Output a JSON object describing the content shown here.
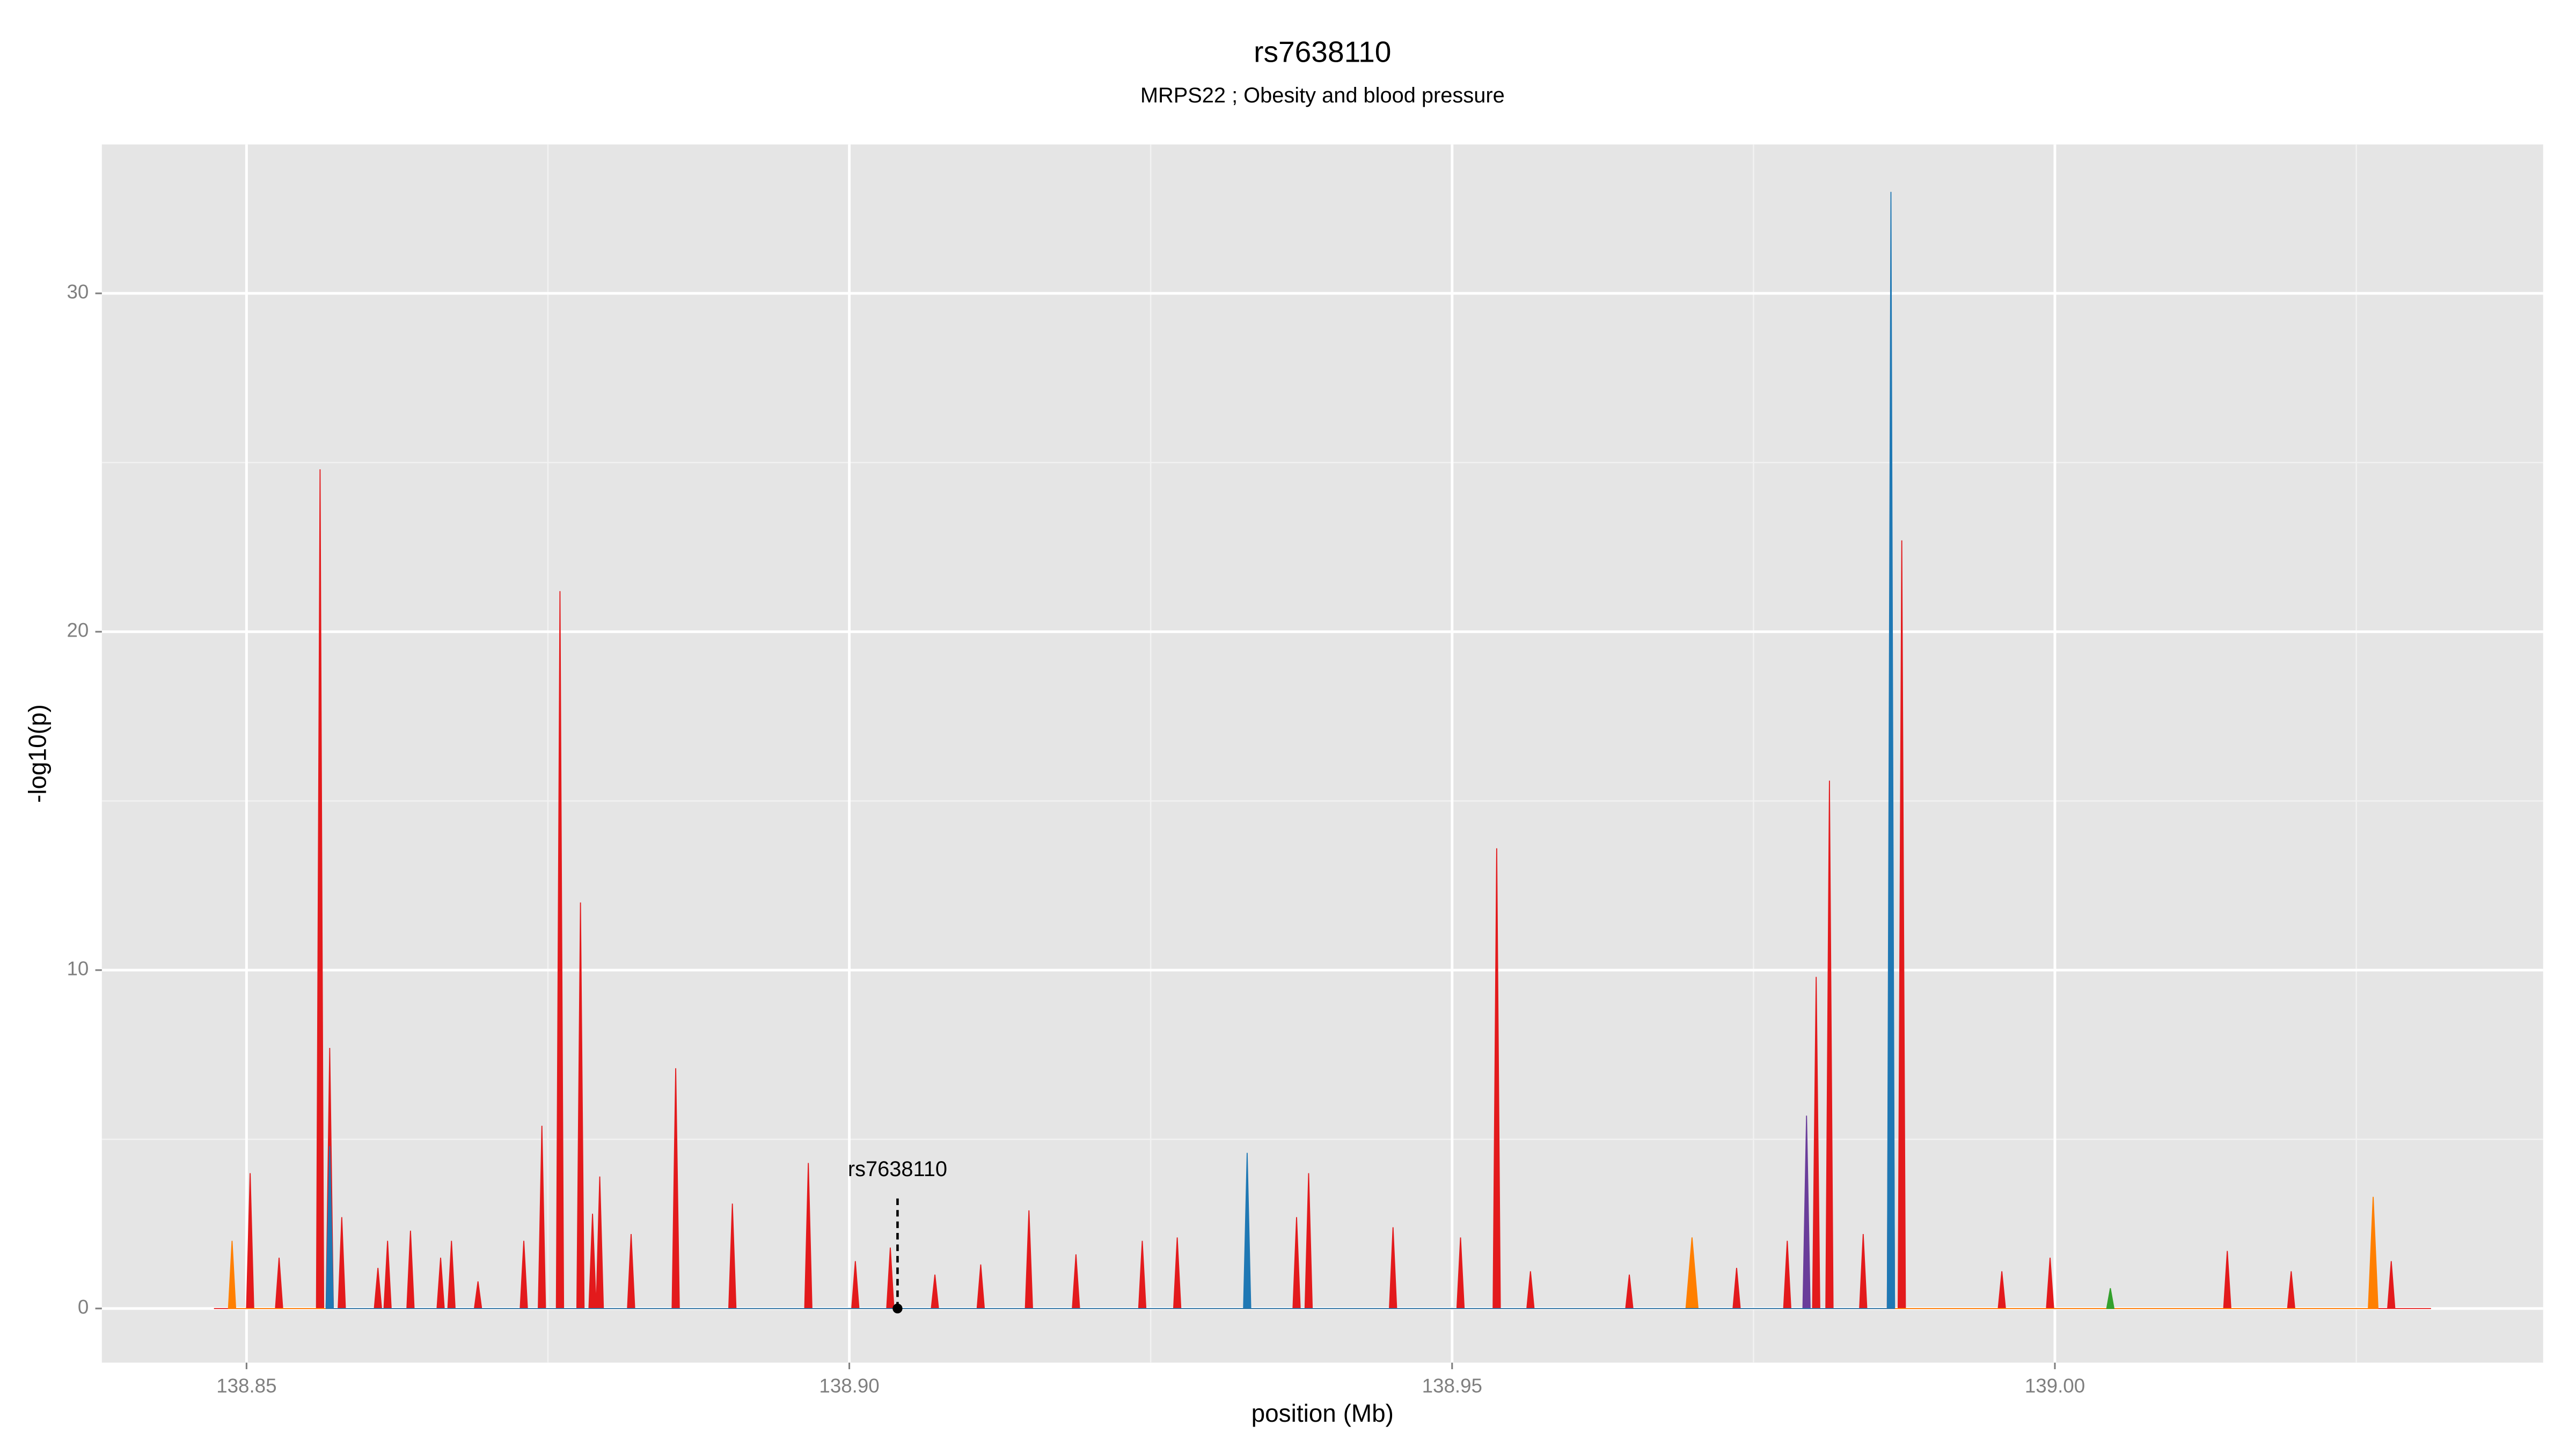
{
  "chart_data": {
    "type": "area",
    "title": "rs7638110",
    "subtitle": "MRPS22 ; Obesity and blood pressure",
    "xlabel": "position (Mb)",
    "ylabel": "-log10(p)",
    "xlim": [
      138.838,
      139.0405
    ],
    "ylim": [
      -1.6,
      34.4
    ],
    "xticks": [
      138.85,
      {
        "value": 138.9,
        "label": "138.90"
      },
      138.95,
      {
        "value": 139.0,
        "label": "139.00"
      }
    ],
    "yticks": [
      0,
      10,
      20,
      30
    ],
    "xminor": [
      138.875,
      138.925,
      138.975,
      139.025
    ],
    "yminor": [
      5,
      15,
      25
    ],
    "grid": true,
    "annotation": {
      "label": "rs7638110",
      "x": 138.904,
      "y": 0
    },
    "series": [
      {
        "color": "#e31a1c",
        "x": [
          138.8473,
          138.85,
          138.8503,
          138.8506,
          138.8524,
          138.8527,
          138.853,
          138.8558,
          138.8561,
          138.8564,
          138.8566,
          138.8569,
          138.8572,
          138.8576,
          138.8579,
          138.8582,
          138.8606,
          138.8609,
          138.8612,
          138.8614,
          138.8617,
          138.862,
          138.8633,
          138.8636,
          138.8639,
          138.8658,
          138.8661,
          138.8664,
          138.8667,
          138.867,
          138.8673,
          138.8689,
          138.8692,
          138.8695,
          138.8727,
          138.873,
          138.8733,
          138.8742,
          138.8745,
          138.8748,
          138.8757,
          138.876,
          138.8763,
          138.8774,
          138.8777,
          138.878,
          138.8784,
          138.8787,
          138.879,
          138.879,
          138.8793,
          138.8796,
          138.8816,
          138.8819,
          138.8822,
          138.8853,
          138.8856,
          138.8859,
          138.89,
          138.8903,
          138.8906,
          138.8963,
          138.8966,
          138.8969,
          138.9002,
          138.9005,
          138.9008,
          138.9031,
          138.9034,
          138.9037,
          138.9068,
          138.9071,
          138.9074,
          138.9106,
          138.9109,
          138.9112,
          138.9146,
          138.9149,
          138.9152,
          138.9185,
          138.9188,
          138.9191,
          138.924,
          138.9243,
          138.9246,
          138.9269,
          138.9272,
          138.9275,
          138.9368,
          138.9371,
          138.9374,
          138.9378,
          138.9381,
          138.9384,
          138.9448,
          138.9451,
          138.9454,
          138.9504,
          138.9507,
          138.951,
          138.9534,
          138.9537,
          138.954,
          138.9562,
          138.9565,
          138.9568,
          138.9644,
          138.9647,
          138.965,
          138.9733,
          138.9736,
          138.9739,
          138.9775,
          138.9778,
          138.9781,
          138.9799,
          138.9802,
          138.9805,
          138.981,
          138.9813,
          138.9816,
          138.9838,
          138.9841,
          138.9844,
          138.9861,
          138.9864,
          138.9867,
          138.987,
          138.9873,
          138.9876,
          138.9953,
          138.9956,
          138.9959,
          138.9993,
          138.9996,
          138.9999,
          139.014,
          139.0143,
          139.0146,
          139.0193,
          139.0196,
          139.0199,
          139.0276,
          139.0279,
          139.0282,
          139.0312
        ],
        "values": [
          0,
          0,
          4,
          0,
          0,
          1.5,
          0,
          0,
          24.8,
          0,
          0,
          7.7,
          0,
          0,
          2.7,
          0,
          0,
          1.2,
          0,
          0,
          2,
          0,
          0,
          2.3,
          0,
          0,
          1.5,
          0,
          0,
          2,
          0,
          0,
          0.8,
          0,
          0,
          2,
          0,
          0,
          5.4,
          0,
          0,
          21.2,
          0,
          0,
          12,
          0,
          0,
          2.8,
          0,
          0,
          3.9,
          0,
          0,
          2.2,
          0,
          0,
          7.1,
          0,
          0,
          3.1,
          0,
          0,
          4.3,
          0,
          0,
          1.4,
          0,
          0,
          1.8,
          0,
          0,
          1,
          0,
          0,
          1.3,
          0,
          0,
          2.9,
          0,
          0,
          1.6,
          0,
          0,
          2,
          0,
          0,
          2.1,
          0,
          0,
          2.7,
          0,
          0,
          4,
          0,
          0,
          2.4,
          0,
          0,
          2.1,
          0,
          0,
          13.6,
          0,
          0,
          1.1,
          0,
          0,
          1,
          0,
          0,
          1.2,
          0,
          0,
          2,
          0,
          0,
          9.8,
          0,
          0,
          15.6,
          0,
          0,
          2.2,
          0,
          0,
          27,
          0,
          0,
          22.7,
          0,
          0,
          1.1,
          0,
          0,
          1.5,
          0,
          0,
          1.7,
          0,
          0,
          1.1,
          0,
          0,
          1.4,
          0,
          0
        ]
      },
      {
        "color": "#ff7f00",
        "x": [
          138.8485,
          138.8488,
          138.8491,
          138.9694,
          138.9699,
          138.9704,
          139.026,
          139.0264,
          139.0268
        ],
        "values": [
          0,
          2,
          0,
          0,
          2.1,
          0,
          0,
          3.3,
          0
        ]
      },
      {
        "color": "#33a02c",
        "x": [
          139.0043,
          139.0046,
          139.0049
        ],
        "values": [
          0,
          0.6,
          0
        ]
      },
      {
        "color": "#6a3d9a",
        "x": [
          138.9791,
          138.9794,
          138.9797
        ],
        "values": [
          0,
          5.7,
          0
        ]
      },
      {
        "color": "#1f78b4",
        "x": [
          138.8566,
          138.8569,
          138.8572,
          138.9327,
          138.933,
          138.9333,
          138.9861,
          138.9864,
          138.9867
        ],
        "values": [
          0,
          4.8,
          0,
          0,
          4.6,
          0,
          0,
          33,
          0
        ]
      }
    ]
  }
}
